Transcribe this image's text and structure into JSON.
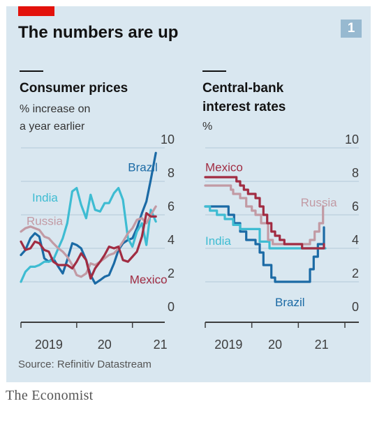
{
  "title": "The numbers are up",
  "badge": "1",
  "source": "Source: Refinitiv Datastream",
  "brand": "The Economist",
  "colors": {
    "background": "#d9e7f0",
    "Brazil": "#1b6aa5",
    "India": "#3ebcd2",
    "Russia": "#c29aa4",
    "Mexico": "#a12c42",
    "axis": "#3d3d3d",
    "grid": "#b3c9d8",
    "accent": "#e3120b"
  },
  "chart_data": [
    {
      "type": "line",
      "title": "Consumer prices",
      "subtitle": [
        "% increase on",
        "a year earlier"
      ],
      "ylim": [
        0,
        10
      ],
      "y_ticks": [
        "0",
        "2",
        "4",
        "6",
        "8",
        "10"
      ],
      "x_range": [
        2019.0,
        2021.58
      ],
      "x_ticks": [
        "2019",
        "20",
        "21"
      ],
      "series": [
        {
          "name": "Brazil",
          "x": [
            2019.0,
            2019.08,
            2019.17,
            2019.25,
            2019.33,
            2019.42,
            2019.5,
            2019.58,
            2019.67,
            2019.75,
            2019.83,
            2019.92,
            2020.0,
            2020.08,
            2020.17,
            2020.25,
            2020.33,
            2020.42,
            2020.5,
            2020.58,
            2020.67,
            2020.75,
            2020.83,
            2020.92,
            2021.0,
            2021.08,
            2021.17,
            2021.25,
            2021.33,
            2021.42
          ],
          "y": [
            3.6,
            3.9,
            4.6,
            4.9,
            4.7,
            3.4,
            3.2,
            3.4,
            2.9,
            2.5,
            3.3,
            4.3,
            4.2,
            4.0,
            3.3,
            2.4,
            1.9,
            2.1,
            2.3,
            2.4,
            3.1,
            3.9,
            4.3,
            4.5,
            4.6,
            5.2,
            6.1,
            6.8,
            8.1,
            9.7
          ]
        },
        {
          "name": "India",
          "x": [
            2019.0,
            2019.08,
            2019.17,
            2019.25,
            2019.33,
            2019.42,
            2019.5,
            2019.58,
            2019.67,
            2019.75,
            2019.83,
            2019.92,
            2020.0,
            2020.08,
            2020.17,
            2020.25,
            2020.33,
            2020.42,
            2020.5,
            2020.58,
            2020.67,
            2020.75,
            2020.83,
            2020.92,
            2021.0,
            2021.08,
            2021.17,
            2021.25,
            2021.33,
            2021.42
          ],
          "y": [
            2.0,
            2.6,
            2.9,
            2.9,
            3.0,
            3.2,
            3.2,
            3.3,
            4.0,
            4.6,
            5.5,
            7.4,
            7.6,
            6.6,
            5.8,
            7.2,
            6.3,
            6.2,
            6.7,
            6.7,
            7.3,
            7.6,
            6.9,
            4.6,
            4.1,
            5.0,
            5.5,
            4.2,
            6.3,
            5.6
          ]
        },
        {
          "name": "Russia",
          "x": [
            2019.0,
            2019.08,
            2019.17,
            2019.25,
            2019.33,
            2019.42,
            2019.5,
            2019.58,
            2019.67,
            2019.75,
            2019.83,
            2019.92,
            2020.0,
            2020.08,
            2020.17,
            2020.25,
            2020.33,
            2020.42,
            2020.5,
            2020.58,
            2020.67,
            2020.75,
            2020.83,
            2020.92,
            2021.0,
            2021.08,
            2021.17,
            2021.25,
            2021.33,
            2021.42
          ],
          "y": [
            5.0,
            5.2,
            5.3,
            5.2,
            5.1,
            4.7,
            4.6,
            4.3,
            4.0,
            3.8,
            3.5,
            3.0,
            2.4,
            2.3,
            2.5,
            3.1,
            3.0,
            3.2,
            3.4,
            3.6,
            3.7,
            4.0,
            4.4,
            4.9,
            5.2,
            5.7,
            5.8,
            5.5,
            6.0,
            6.5
          ]
        },
        {
          "name": "Mexico",
          "x": [
            2019.0,
            2019.08,
            2019.17,
            2019.25,
            2019.33,
            2019.42,
            2019.5,
            2019.58,
            2019.67,
            2019.75,
            2019.83,
            2019.92,
            2020.0,
            2020.08,
            2020.17,
            2020.25,
            2020.33,
            2020.42,
            2020.5,
            2020.58,
            2020.67,
            2020.75,
            2020.83,
            2020.92,
            2021.0,
            2021.08,
            2021.17,
            2021.25,
            2021.33,
            2021.42
          ],
          "y": [
            4.4,
            3.9,
            4.0,
            4.4,
            4.3,
            3.9,
            3.8,
            3.2,
            3.0,
            3.0,
            3.0,
            2.8,
            3.2,
            3.7,
            3.3,
            2.2,
            2.8,
            3.2,
            3.6,
            4.1,
            4.0,
            4.1,
            3.3,
            3.2,
            3.5,
            3.8,
            4.7,
            6.1,
            5.9,
            5.9
          ]
        }
      ],
      "labels": [
        {
          "text": "Brazil",
          "series": "Brazil",
          "x": 2020.92,
          "y": 8.6
        },
        {
          "text": "India",
          "series": "India",
          "x": 2019.2,
          "y": 6.8
        },
        {
          "text": "Russia",
          "series": "Russia",
          "x": 2019.1,
          "y": 5.4
        },
        {
          "text": "Mexico",
          "series": "Mexico",
          "x": 2020.95,
          "y": 1.9
        }
      ]
    },
    {
      "type": "line",
      "title": "Central-bank interest rates",
      "title_lines": [
        "Central-bank",
        "interest rates"
      ],
      "subtitle": [
        "%"
      ],
      "ylim": [
        0,
        10
      ],
      "y_ticks": [
        "0",
        "2",
        "4",
        "6",
        "8",
        "10"
      ],
      "x_range": [
        2019.0,
        2021.58
      ],
      "x_ticks": [
        "2019",
        "20",
        "21"
      ],
      "series": [
        {
          "name": "Brazil",
          "x": [
            2019.0,
            2019.45,
            2019.5,
            2019.62,
            2019.75,
            2019.88,
            2020.0,
            2020.08,
            2020.17,
            2020.25,
            2020.42,
            2020.5,
            2020.58,
            2021.17,
            2021.25,
            2021.33,
            2021.42,
            2021.5,
            2021.55
          ],
          "y": [
            6.5,
            6.5,
            6.0,
            5.5,
            5.0,
            4.5,
            4.5,
            4.25,
            3.75,
            3.0,
            2.25,
            2.0,
            2.0,
            2.0,
            2.75,
            3.5,
            4.25,
            4.25,
            5.25
          ]
        },
        {
          "name": "India",
          "x": [
            2019.0,
            2019.1,
            2019.25,
            2019.42,
            2019.6,
            2019.75,
            2020.17,
            2020.38,
            2021.58
          ],
          "y": [
            6.5,
            6.25,
            6.0,
            5.75,
            5.4,
            5.15,
            4.4,
            4.0,
            4.0
          ]
        },
        {
          "name": "Russia",
          "x": [
            2019.0,
            2019.42,
            2019.55,
            2019.6,
            2019.75,
            2019.88,
            2020.0,
            2020.08,
            2020.2,
            2020.35,
            2020.45,
            2020.58,
            2021.17,
            2021.25,
            2021.35,
            2021.45,
            2021.53
          ],
          "y": [
            7.75,
            7.75,
            7.5,
            7.25,
            7.0,
            6.5,
            6.25,
            6.0,
            5.5,
            4.5,
            4.25,
            4.25,
            4.25,
            4.5,
            5.0,
            5.5,
            6.5
          ]
        },
        {
          "name": "Mexico",
          "x": [
            2019.0,
            2019.58,
            2019.67,
            2019.75,
            2019.83,
            2019.92,
            2020.08,
            2020.17,
            2020.25,
            2020.33,
            2020.42,
            2020.5,
            2020.6,
            2020.7,
            2020.8,
            2020.92,
            2021.08,
            2021.5,
            2021.55
          ],
          "y": [
            8.25,
            8.25,
            8.0,
            7.75,
            7.5,
            7.25,
            7.0,
            6.5,
            6.0,
            5.5,
            5.0,
            4.75,
            4.5,
            4.25,
            4.25,
            4.25,
            4.0,
            4.0,
            4.25
          ]
        }
      ],
      "labels": [
        {
          "text": "Mexico",
          "series": "Mexico",
          "x": 2019.0,
          "y": 8.6
        },
        {
          "text": "Russia",
          "series": "Russia",
          "x": 2021.05,
          "y": 6.5
        },
        {
          "text": "India",
          "series": "India",
          "x": 2019.0,
          "y": 4.2
        },
        {
          "text": "Brazil",
          "series": "Brazil",
          "x": 2020.5,
          "y": 0.55
        }
      ]
    }
  ]
}
